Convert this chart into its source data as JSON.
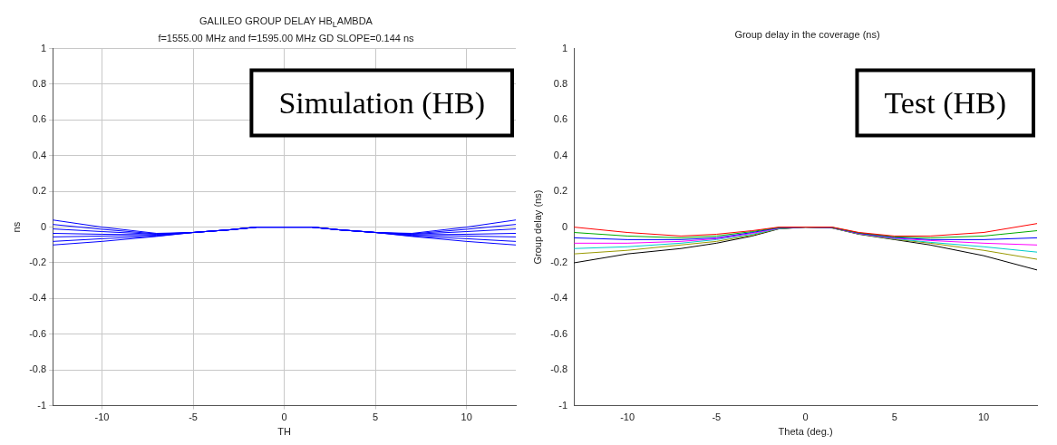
{
  "chart_data": [
    {
      "type": "line",
      "title": "GALILEO GROUP DELAY HB$_{L}$AMBDA",
      "subtitle": "f=1555.00 MHz and f=1595.00 MHz GD SLOPE=0.144 ns",
      "xlabel": "TH",
      "ylabel": "ns",
      "annotations": [
        "Simulation (HB)"
      ],
      "x": [
        -12.7,
        -10,
        -7,
        -5,
        -3,
        -1.5,
        0,
        1.5,
        3,
        5,
        7,
        10,
        12.7
      ],
      "xlim": [
        -12.7,
        12.7
      ],
      "xticks": [
        -10,
        -5,
        0,
        5,
        10
      ],
      "ylim": [
        -1,
        1
      ],
      "yticks": [
        -1,
        -0.8,
        -0.6,
        -0.4,
        -0.2,
        0,
        0.2,
        0.4,
        0.6,
        0.8,
        1
      ],
      "grid": true,
      "legend": false,
      "marker": "none",
      "line_style": "solid",
      "series": [
        {
          "color": "#0000ff",
          "values": [
            0.04,
            0.0,
            -0.035,
            -0.03,
            -0.015,
            0,
            0,
            0,
            -0.015,
            -0.03,
            -0.035,
            0.0,
            0.04
          ]
        },
        {
          "color": "#0000ff",
          "values": [
            0.015,
            -0.012,
            -0.038,
            -0.03,
            -0.015,
            0,
            0,
            0,
            -0.015,
            -0.03,
            -0.038,
            -0.012,
            0.015
          ]
        },
        {
          "color": "#0000ff",
          "values": [
            -0.01,
            -0.025,
            -0.04,
            -0.03,
            -0.015,
            0,
            0,
            0,
            -0.015,
            -0.03,
            -0.04,
            -0.025,
            -0.01
          ]
        },
        {
          "color": "#0000ff",
          "values": [
            -0.035,
            -0.04,
            -0.043,
            -0.03,
            -0.015,
            0,
            0,
            0,
            -0.015,
            -0.03,
            -0.043,
            -0.04,
            -0.035
          ]
        },
        {
          "color": "#0000ff",
          "values": [
            -0.055,
            -0.05,
            -0.046,
            -0.03,
            -0.015,
            0,
            0,
            0,
            -0.015,
            -0.03,
            -0.046,
            -0.05,
            -0.055
          ]
        },
        {
          "color": "#0000ff",
          "values": [
            -0.08,
            -0.065,
            -0.05,
            -0.03,
            -0.015,
            0,
            0,
            0,
            -0.015,
            -0.03,
            -0.05,
            -0.065,
            -0.08
          ]
        },
        {
          "color": "#0000ff",
          "values": [
            -0.1,
            -0.08,
            -0.052,
            -0.03,
            -0.015,
            0,
            0,
            0,
            -0.015,
            -0.03,
            -0.052,
            -0.08,
            -0.1
          ]
        }
      ]
    },
    {
      "type": "line",
      "title": "Group delay in the coverage (ns)",
      "xlabel": "Theta (deg.)",
      "ylabel": "Group delay (ns)",
      "annotations": [
        "Test (HB)"
      ],
      "x": [
        -13,
        -10,
        -7,
        -5,
        -3,
        -1.5,
        0,
        1.5,
        3,
        5,
        7,
        10,
        13
      ],
      "xlim": [
        -13,
        13
      ],
      "xticks": [
        -10,
        -5,
        0,
        5,
        10
      ],
      "ylim": [
        -1,
        1
      ],
      "yticks": [
        -1,
        -0.8,
        -0.6,
        -0.4,
        -0.2,
        0,
        0.2,
        0.4,
        0.6,
        0.8,
        1
      ],
      "grid": false,
      "legend": false,
      "marker": "none",
      "line_style": "solid",
      "series": [
        {
          "color": "#ff0000",
          "values": [
            0.0,
            -0.03,
            -0.05,
            -0.04,
            -0.02,
            0,
            0,
            0,
            -0.03,
            -0.05,
            -0.05,
            -0.03,
            0.02
          ]
        },
        {
          "color": "#00aa00",
          "values": [
            -0.03,
            -0.05,
            -0.06,
            -0.05,
            -0.025,
            -0.002,
            0,
            -0.001,
            -0.032,
            -0.055,
            -0.06,
            -0.05,
            -0.02
          ]
        },
        {
          "color": "#0000ff",
          "values": [
            -0.06,
            -0.07,
            -0.07,
            -0.06,
            -0.03,
            -0.004,
            0,
            -0.002,
            -0.034,
            -0.058,
            -0.07,
            -0.07,
            -0.06
          ]
        },
        {
          "color": "#ff00ff",
          "values": [
            -0.09,
            -0.09,
            -0.08,
            -0.065,
            -0.035,
            -0.006,
            0,
            -0.003,
            -0.036,
            -0.062,
            -0.075,
            -0.09,
            -0.1
          ]
        },
        {
          "color": "#00cccc",
          "values": [
            -0.12,
            -0.11,
            -0.09,
            -0.07,
            -0.04,
            -0.008,
            0,
            -0.004,
            -0.037,
            -0.065,
            -0.085,
            -0.11,
            -0.14
          ]
        },
        {
          "color": "#999900",
          "values": [
            -0.15,
            -0.13,
            -0.1,
            -0.08,
            -0.045,
            -0.009,
            0,
            -0.005,
            -0.038,
            -0.068,
            -0.09,
            -0.13,
            -0.18
          ]
        },
        {
          "color": "#000000",
          "values": [
            -0.2,
            -0.15,
            -0.12,
            -0.09,
            -0.05,
            -0.01,
            0,
            -0.005,
            -0.04,
            -0.07,
            -0.1,
            -0.16,
            -0.24
          ]
        }
      ]
    }
  ]
}
